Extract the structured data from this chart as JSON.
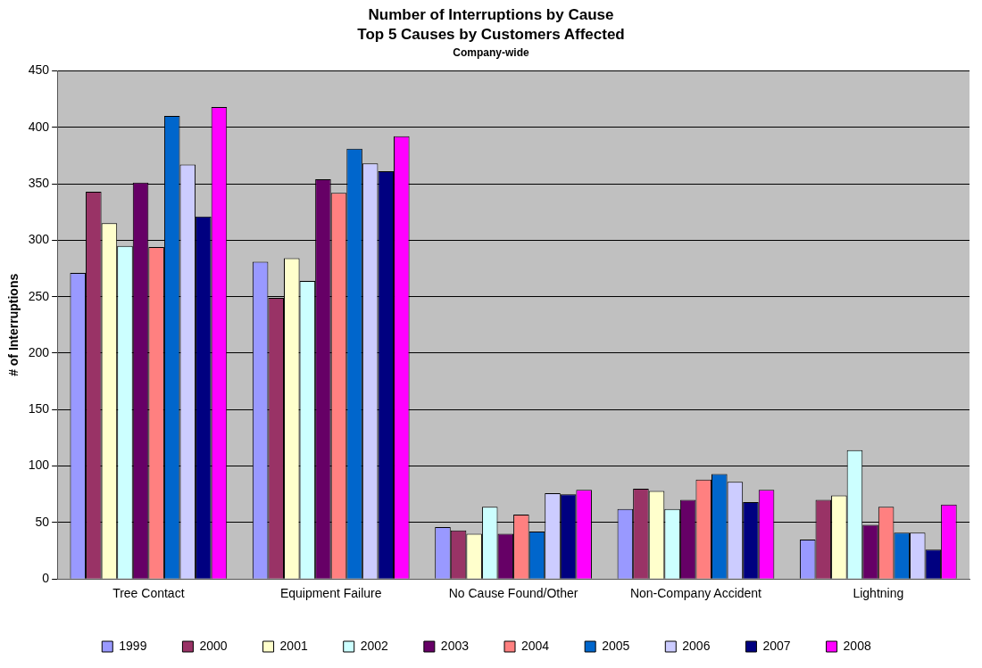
{
  "chart_data": {
    "type": "bar",
    "title": "Number of Interruptions by Cause",
    "subtitle": "Top 5 Causes by Customers Affected",
    "annotations": [
      "Company-wide"
    ],
    "ylabel": "# of Interruptions",
    "categories": [
      "Tree Contact",
      "Equipment Failure",
      "No Cause Found/Other",
      "Non-Company Accident",
      "Lightning"
    ],
    "series": [
      {
        "name": "1999",
        "color": "#9999ff",
        "values": [
          271,
          281,
          46,
          62,
          35
        ]
      },
      {
        "name": "2000",
        "color": "#993366",
        "values": [
          343,
          249,
          43,
          80,
          70
        ]
      },
      {
        "name": "2001",
        "color": "#ffffcc",
        "values": [
          315,
          284,
          40,
          78,
          74
        ]
      },
      {
        "name": "2002",
        "color": "#ccffff",
        "values": [
          295,
          264,
          64,
          62,
          114
        ]
      },
      {
        "name": "2003",
        "color": "#660066",
        "values": [
          351,
          354,
          40,
          70,
          48
        ]
      },
      {
        "name": "2004",
        "color": "#ff8080",
        "values": [
          294,
          342,
          57,
          88,
          64
        ]
      },
      {
        "name": "2005",
        "color": "#0066cc",
        "values": [
          410,
          381,
          42,
          93,
          41
        ]
      },
      {
        "name": "2006",
        "color": "#ccccff",
        "values": [
          367,
          368,
          76,
          86,
          41
        ]
      },
      {
        "name": "2007",
        "color": "#000080",
        "values": [
          321,
          361,
          75,
          68,
          26
        ]
      },
      {
        "name": "2008",
        "color": "#ff00ff",
        "values": [
          418,
          392,
          79,
          79,
          66
        ]
      }
    ],
    "ylim": [
      0,
      450
    ],
    "yticks": [
      0,
      50,
      100,
      150,
      200,
      250,
      300,
      350,
      400,
      450
    ],
    "grid": "y",
    "legend": "bottom"
  }
}
